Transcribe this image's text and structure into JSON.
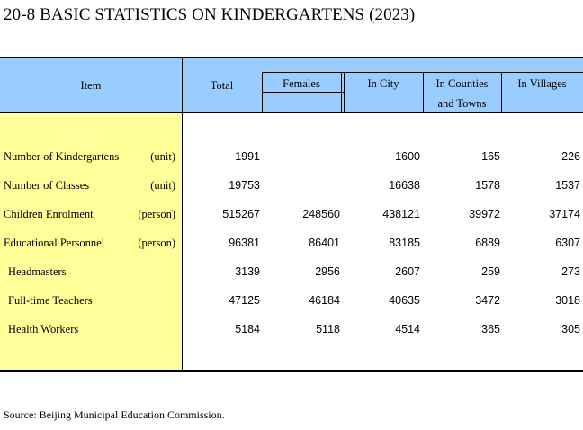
{
  "title": "20-8  BASIC STATISTICS ON KINDERGARTENS (2023)",
  "header": {
    "item": "Item",
    "total": "Total",
    "females": "Females",
    "in_city": "In City",
    "in_counties_line1": "In Counties",
    "in_counties_line2": "and Towns",
    "in_villages": "In Villages"
  },
  "rows": [
    {
      "label": "Number of Kindergartens",
      "unit": "(unit)",
      "total": "1991",
      "females": "",
      "in_city": "1600",
      "in_counties": "165",
      "in_villages": "226"
    },
    {
      "label": "Number of Classes",
      "unit": "(unit)",
      "total": "19753",
      "females": "",
      "in_city": "16638",
      "in_counties": "1578",
      "in_villages": "1537"
    },
    {
      "label": "Children Enrolment",
      "unit": "(person)",
      "total": "515267",
      "females": "248560",
      "in_city": "438121",
      "in_counties": "39972",
      "in_villages": "37174"
    },
    {
      "label": "Educational Personnel",
      "unit": "(person)",
      "total": "96381",
      "females": "86401",
      "in_city": "83185",
      "in_counties": "6889",
      "in_villages": "6307"
    },
    {
      "label": "Headmasters",
      "unit": "",
      "total": "3139",
      "females": "2956",
      "in_city": "2607",
      "in_counties": "259",
      "in_villages": "273"
    },
    {
      "label": "Full-time Teachers",
      "unit": "",
      "total": "47125",
      "females": "46184",
      "in_city": "40635",
      "in_counties": "3472",
      "in_villages": "3018"
    },
    {
      "label": "Health Workers",
      "unit": "",
      "total": "5184",
      "females": "5118",
      "in_city": "4514",
      "in_counties": "365",
      "in_villages": "305"
    }
  ],
  "source": "Source: Beijing Municipal Education Commission.",
  "colors": {
    "header_bg": "#99ccff",
    "item_col_bg": "#ffff99"
  }
}
